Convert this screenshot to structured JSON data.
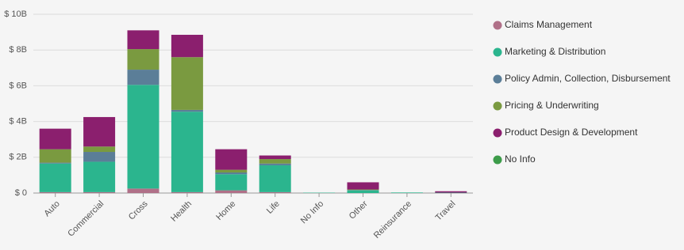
{
  "chart_data": {
    "type": "bar",
    "stacked": true,
    "categories": [
      "Auto",
      "Commercial",
      "Cross",
      "Health",
      "Home",
      "Life",
      "No Info",
      "Other",
      "Reinsurance",
      "Travel"
    ],
    "series": [
      {
        "name": "Claims Management",
        "color": "#b07088",
        "values": [
          0.05,
          0.05,
          0.25,
          0.05,
          0.15,
          0.05,
          0,
          0,
          0,
          0
        ]
      },
      {
        "name": "Marketing & Distribution",
        "color": "#2bb58e",
        "values": [
          1.6,
          1.7,
          5.8,
          4.5,
          0.9,
          1.5,
          0.02,
          0.15,
          0.03,
          0.02
        ]
      },
      {
        "name": "Policy Admin, Collection, Disbursement",
        "color": "#5b7e98",
        "values": [
          0.05,
          0.55,
          0.85,
          0.1,
          0.1,
          0.1,
          0,
          0.02,
          0,
          0
        ]
      },
      {
        "name": "Pricing & Underwriting",
        "color": "#7a9a40",
        "values": [
          0.75,
          0.3,
          1.15,
          2.95,
          0.15,
          0.25,
          0,
          0.03,
          0,
          0
        ]
      },
      {
        "name": "Product Design & Development",
        "color": "#8b1f6e",
        "values": [
          1.15,
          1.65,
          1.05,
          1.25,
          1.15,
          0.2,
          0,
          0.4,
          0,
          0.08
        ]
      },
      {
        "name": "No Info",
        "color": "#3d9c4a",
        "values": [
          0,
          0,
          0,
          0,
          0,
          0,
          0,
          0,
          0,
          0
        ]
      }
    ],
    "ylim": [
      0,
      10
    ],
    "yticks": [
      {
        "value": 0,
        "label": "$ 0"
      },
      {
        "value": 2,
        "label": "$ 2B"
      },
      {
        "value": 4,
        "label": "$ 4B"
      },
      {
        "value": 6,
        "label": "$ 6B"
      },
      {
        "value": 8,
        "label": "$ 8B"
      },
      {
        "value": 10,
        "label": "$ 10B"
      }
    ],
    "grid": true,
    "legend": "right"
  }
}
